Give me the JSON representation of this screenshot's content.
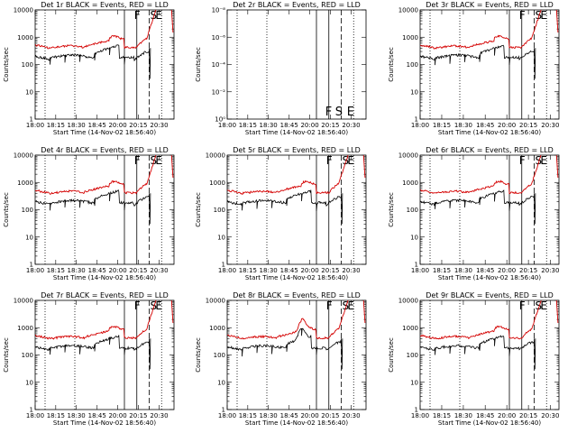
{
  "chart_data": [
    {
      "type": "line",
      "title": "Det 1r BLACK = Events, RED = LLD",
      "empty": false,
      "variant": 1
    },
    {
      "type": "line",
      "title": "Det 2r BLACK = Events, RED = LLD",
      "empty": true,
      "variant": 0
    },
    {
      "type": "line",
      "title": "Det 3r BLACK = Events, RED = LLD",
      "empty": false,
      "variant": 3
    },
    {
      "type": "line",
      "title": "Det 4r BLACK = Events, RED = LLD",
      "empty": false,
      "variant": 4
    },
    {
      "type": "line",
      "title": "Det 5r BLACK = Events, RED = LLD",
      "empty": false,
      "variant": 5
    },
    {
      "type": "line",
      "title": "Det 6r BLACK = Events, RED = LLD",
      "empty": false,
      "variant": 6
    },
    {
      "type": "line",
      "title": "Det 7r BLACK = Events, RED = LLD",
      "empty": false,
      "variant": 7
    },
    {
      "type": "line",
      "title": "Det 8r BLACK = Events, RED = LLD",
      "empty": false,
      "variant": 8
    },
    {
      "type": "line",
      "title": "Det 9r BLACK = Events, RED = LLD",
      "empty": false,
      "variant": 9
    }
  ],
  "shared": {
    "xlabel": "Start Time (14-Nov-02 18:56:40)",
    "ylabel": "Counts/sec",
    "x_ticks": [
      "18:00",
      "18:15",
      "18:30",
      "18:45",
      "20:00",
      "20:15",
      "20:30"
    ],
    "x_range_min": [
      0,
      56
    ],
    "y_ticks_normal": [
      "1",
      "10",
      "100",
      "1000",
      "10000"
    ],
    "y_ticks_empty": [
      "10⁰",
      "10⁻²",
      "10⁻⁴",
      "10⁻⁶",
      "10⁻⁸"
    ],
    "vertical_lines_min": {
      "dotted": [
        4,
        16,
        51
      ],
      "solid": [
        36,
        41
      ],
      "dashed": [
        46
      ]
    },
    "markers": {
      "normal": [
        "F",
        "S",
        "E"
      ],
      "empty": [
        "F",
        "S",
        "E"
      ]
    },
    "series": {
      "black": {
        "name": "Events",
        "color": "#000000"
      },
      "red": {
        "name": "LLD",
        "color": "#d40000"
      }
    }
  }
}
